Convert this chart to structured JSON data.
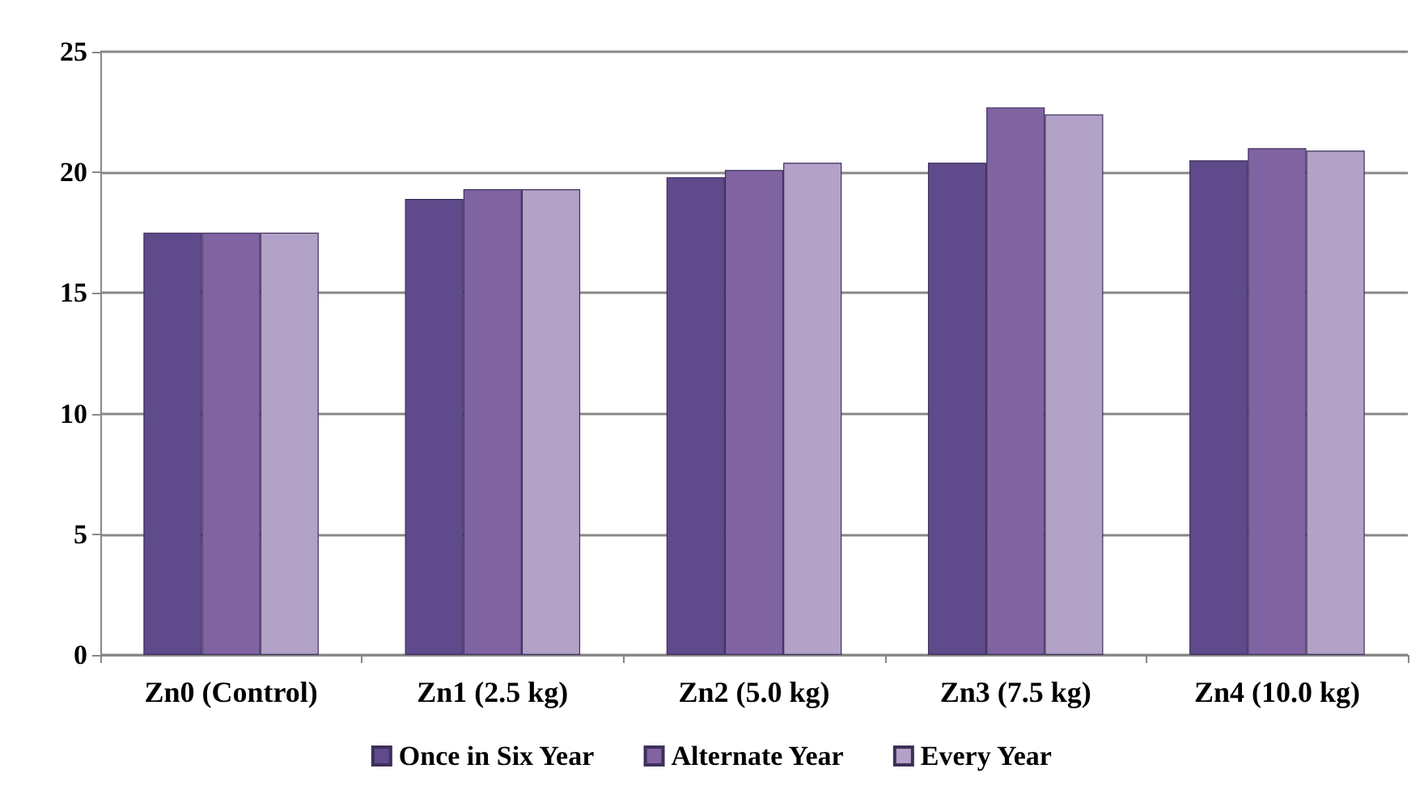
{
  "chart_data": {
    "type": "bar",
    "categories": [
      "Zn0 (Control)",
      "Zn1 (2.5 kg)",
      "Zn2 (5.0 kg)",
      "Zn3 (7.5 kg)",
      "Zn4 (10.0 kg)"
    ],
    "series": [
      {
        "name": "Once in Six Year",
        "color": "#5f4a8b",
        "values": [
          17.5,
          18.9,
          19.8,
          20.4,
          20.5
        ]
      },
      {
        "name": "Alternate Year",
        "color": "#8064a2",
        "values": [
          17.5,
          19.3,
          20.1,
          22.7,
          21.0
        ]
      },
      {
        "name": "Every Year",
        "color": "#b3a2c7",
        "values": [
          17.5,
          19.3,
          20.4,
          22.4,
          20.9
        ]
      }
    ],
    "ylim": [
      0,
      25
    ],
    "yticks": [
      0,
      5,
      10,
      15,
      20,
      25
    ],
    "grid": "y",
    "legend": "bottom"
  }
}
